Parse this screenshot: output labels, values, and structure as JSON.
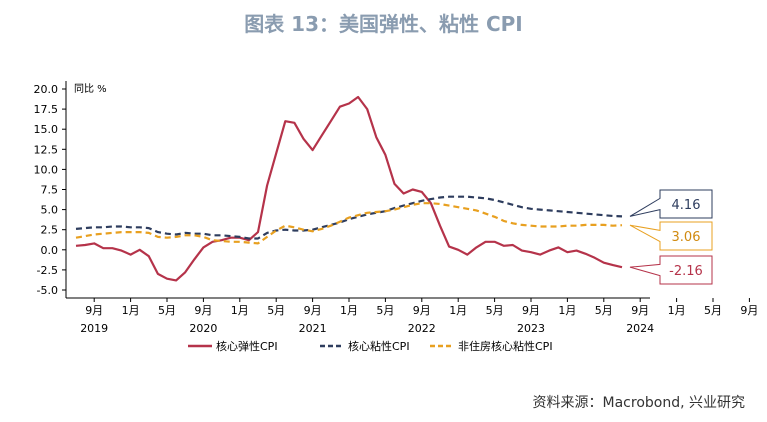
{
  "chart_data": {
    "type": "line",
    "title": "图表 13：美国弹性、粘性 CPI",
    "ylabel": "同比 %",
    "ylim": [
      -5,
      20
    ],
    "yticks": [
      "20.0",
      "17.5",
      "15.0",
      "12.5",
      "10.0",
      "7.5",
      "5.0",
      "2.5",
      "0.0",
      "-2.5",
      "-5.0"
    ],
    "xticks": [
      "9月",
      "1月",
      "5月",
      "9月",
      "1月",
      "5月",
      "9月",
      "1月",
      "5月",
      "9月",
      "1月",
      "5月",
      "9月",
      "1月",
      "5月",
      "9月",
      "1月",
      "5月",
      "9月"
    ],
    "years": [
      "2019",
      "2020",
      "2021",
      "2022",
      "2023",
      "2024"
    ],
    "x_start": "2019-07",
    "x_end": "2024-08",
    "grid": false,
    "legend_position": "bottom",
    "series": [
      {
        "name": "核心弹性CPI",
        "color": "#b5334a",
        "dash": "solid",
        "end_label": "-2.16",
        "values": [
          0.5,
          0.6,
          0.8,
          0.2,
          0.2,
          -0.1,
          -0.6,
          0.0,
          -0.8,
          -3.0,
          -3.6,
          -3.8,
          -2.8,
          -1.2,
          0.3,
          1.0,
          1.2,
          1.5,
          1.5,
          1.2,
          2.2,
          8.0,
          12.0,
          16.0,
          15.8,
          13.8,
          12.4,
          14.2,
          16.0,
          17.8,
          18.2,
          19.0,
          17.5,
          14.0,
          11.8,
          8.2,
          7.0,
          7.5,
          7.2,
          5.8,
          3.0,
          0.4,
          0.0,
          -0.6,
          0.3,
          1.0,
          1.0,
          0.5,
          0.6,
          -0.1,
          -0.3,
          -0.6,
          -0.1,
          0.3,
          -0.3,
          -0.1,
          -0.5,
          -1.0,
          -1.6,
          -1.9,
          -2.16
        ]
      },
      {
        "name": "核心粘性CPI",
        "color": "#2e3d5e",
        "dash": "6,4",
        "end_label": "4.16",
        "values": [
          2.6,
          2.7,
          2.8,
          2.8,
          2.9,
          2.9,
          2.8,
          2.8,
          2.7,
          2.2,
          2.0,
          1.9,
          2.1,
          2.0,
          2.0,
          1.8,
          1.8,
          1.7,
          1.6,
          1.4,
          1.4,
          2.1,
          2.4,
          2.5,
          2.4,
          2.4,
          2.5,
          2.8,
          3.1,
          3.4,
          3.8,
          4.1,
          4.4,
          4.6,
          4.8,
          5.2,
          5.5,
          5.8,
          6.1,
          6.3,
          6.5,
          6.6,
          6.6,
          6.6,
          6.5,
          6.4,
          6.2,
          5.9,
          5.6,
          5.3,
          5.1,
          5.0,
          4.9,
          4.8,
          4.7,
          4.6,
          4.5,
          4.4,
          4.3,
          4.2,
          4.16
        ]
      },
      {
        "name": "非住房核心粘性CPI",
        "color": "#e8a020",
        "dash": "6,4",
        "end_label": "3.06",
        "values": [
          1.5,
          1.7,
          1.9,
          2.0,
          2.1,
          2.2,
          2.2,
          2.2,
          2.1,
          1.6,
          1.5,
          1.6,
          1.8,
          1.8,
          1.6,
          1.2,
          1.1,
          1.0,
          1.0,
          0.9,
          0.8,
          1.6,
          2.4,
          3.0,
          2.8,
          2.5,
          2.3,
          2.6,
          3.0,
          3.5,
          4.0,
          4.3,
          4.6,
          4.7,
          4.8,
          5.0,
          5.3,
          5.6,
          5.8,
          5.8,
          5.7,
          5.5,
          5.3,
          5.1,
          4.9,
          4.5,
          4.1,
          3.6,
          3.3,
          3.1,
          3.0,
          2.9,
          2.9,
          2.9,
          3.0,
          3.0,
          3.1,
          3.1,
          3.1,
          3.0,
          3.06
        ]
      }
    ]
  },
  "source": "资料来源：Macrobond, 兴业研究"
}
